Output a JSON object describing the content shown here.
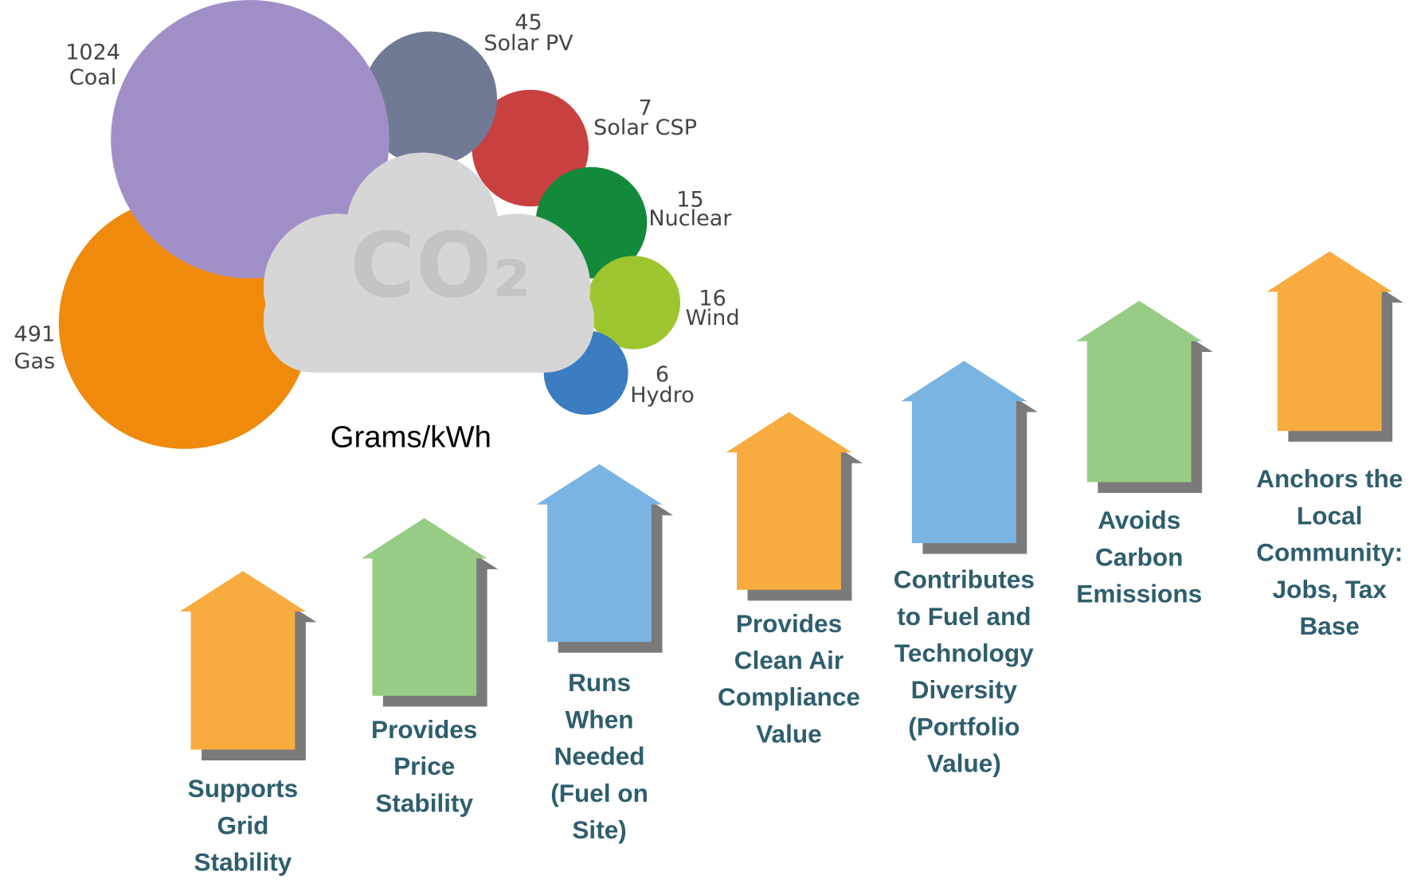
{
  "bubbles": [
    {
      "value": "491",
      "label": "Gas"
    },
    {
      "value": "1024",
      "label": "Coal"
    },
    {
      "value": "45",
      "label": "Solar PV"
    },
    {
      "value": "7",
      "label": "Solar CSP"
    },
    {
      "value": "15",
      "label": "Nuclear"
    },
    {
      "value": "16",
      "label": "Wind"
    },
    {
      "value": "6",
      "label": "Hydro"
    }
  ],
  "cloud_label": "CO₂",
  "unit": "Grams/kWh",
  "arrows": [
    {
      "lines": [
        "Supports",
        "Grid",
        "Stability"
      ]
    },
    {
      "lines": [
        "Provides",
        "Price",
        "Stability"
      ]
    },
    {
      "lines": [
        "Runs",
        "When",
        "Needed",
        "(Fuel on",
        "Site)"
      ]
    },
    {
      "lines": [
        "Provides",
        "Clean Air",
        "Compliance",
        "Value"
      ]
    },
    {
      "lines": [
        "Contributes",
        "to Fuel and",
        "Technology",
        "Diversity",
        "(Portfolio",
        "Value)"
      ]
    },
    {
      "lines": [
        "Avoids",
        "Carbon",
        "Emissions"
      ]
    },
    {
      "lines": [
        "Anchors the",
        "Local",
        "Community:",
        "Jobs, Tax",
        "Base"
      ]
    }
  ]
}
